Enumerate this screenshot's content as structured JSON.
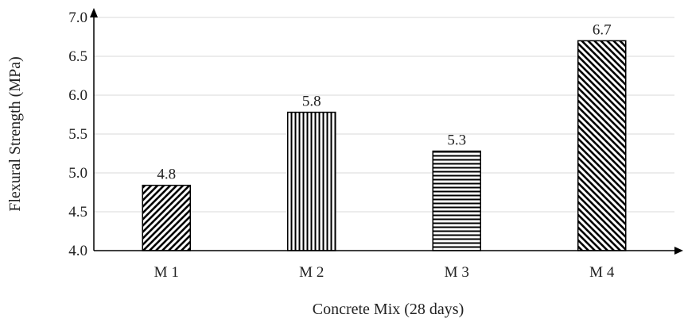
{
  "chart_data": {
    "type": "bar",
    "title": "",
    "xlabel": "Concrete Mix (28 days)",
    "ylabel": "Flexural Strength (MPa)",
    "categories": [
      "M 1",
      "M 2",
      "M 3",
      "M 4"
    ],
    "values": [
      4.84,
      5.78,
      5.28,
      6.7
    ],
    "data_labels": [
      "4.8",
      "5.8",
      "5.3",
      "6.7"
    ],
    "bar_patterns": [
      "diagonal-up",
      "vertical",
      "horizontal",
      "diagonal-down"
    ],
    "ylim": [
      4.0,
      7.0
    ],
    "yticks": [
      "4.0",
      "4.5",
      "5.0",
      "5.5",
      "6.0",
      "6.5",
      "7.0"
    ],
    "grid": true,
    "legend": "none",
    "colors": {
      "bar_stroke": "#000000",
      "grid": "#d9d9d9",
      "axis": "#000000",
      "background": "#ffffff"
    }
  }
}
